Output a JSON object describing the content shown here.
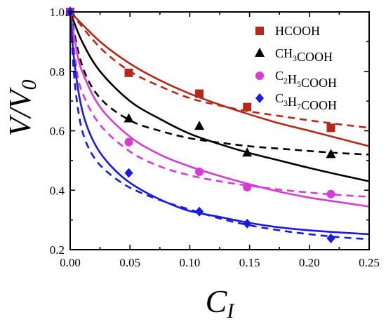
{
  "chart_data": {
    "type": "scatter",
    "xlabel": "C",
    "xlabel_sub": "I",
    "ylabel": "V/V",
    "ylabel_sub": "0",
    "xlim": [
      0.0,
      0.25
    ],
    "ylim": [
      0.2,
      1.0
    ],
    "xticks": [
      "0.00",
      "0.05",
      "0.10",
      "0.15",
      "0.20",
      "0.25"
    ],
    "yticks": [
      "0.2",
      "0.4",
      "0.6",
      "0.8",
      "1.0"
    ],
    "grid": false,
    "legend_position": "top-right",
    "series": [
      {
        "name": "HCOOH",
        "legend": {
          "base": "HCOOH",
          "parts": [
            {
              "t": "HCOOH",
              "sub": false
            }
          ]
        },
        "color": "#b5291b",
        "marker": "square",
        "points": {
          "x": [
            0.0,
            0.049,
            0.108,
            0.148,
            0.218
          ],
          "y": [
            1.0,
            0.795,
            0.725,
            0.68,
            0.61
          ]
        },
        "solid_fit": {
          "x": [
            0.0,
            0.025,
            0.05,
            0.075,
            0.1,
            0.125,
            0.15,
            0.175,
            0.2,
            0.225,
            0.25
          ],
          "y": [
            1.0,
            0.9,
            0.826,
            0.77,
            0.725,
            0.688,
            0.655,
            0.625,
            0.6,
            0.574,
            0.548
          ]
        },
        "dashed_fit": {
          "x": [
            0.0,
            0.025,
            0.05,
            0.075,
            0.1,
            0.125,
            0.15,
            0.175,
            0.2,
            0.225,
            0.25
          ],
          "y": [
            1.0,
            0.88,
            0.8,
            0.75,
            0.71,
            0.685,
            0.665,
            0.65,
            0.635,
            0.622,
            0.61
          ]
        }
      },
      {
        "name": "CH3COOH",
        "legend": {
          "base": "CH3COOH",
          "parts": [
            {
              "t": "CH",
              "sub": false
            },
            {
              "t": "3",
              "sub": true
            },
            {
              "t": "COOH",
              "sub": false
            }
          ]
        },
        "color": "#000000",
        "marker": "triangle",
        "points": {
          "x": [
            0.0,
            0.049,
            0.108,
            0.148,
            0.218
          ],
          "y": [
            1.0,
            0.64,
            0.615,
            0.525,
            0.52
          ]
        },
        "solid_fit": {
          "x": [
            0.0,
            0.01,
            0.025,
            0.05,
            0.075,
            0.1,
            0.125,
            0.15,
            0.175,
            0.2,
            0.225,
            0.25
          ],
          "y": [
            1.0,
            0.9,
            0.8,
            0.7,
            0.64,
            0.59,
            0.555,
            0.525,
            0.5,
            0.475,
            0.452,
            0.43
          ]
        },
        "dashed_fit": {
          "x": [
            0.0,
            0.01,
            0.025,
            0.05,
            0.075,
            0.1,
            0.125,
            0.15,
            0.175,
            0.2,
            0.225,
            0.25
          ],
          "y": [
            1.0,
            0.82,
            0.71,
            0.635,
            0.6,
            0.575,
            0.56,
            0.548,
            0.54,
            0.532,
            0.525,
            0.52
          ]
        }
      },
      {
        "name": "C2H5COOH",
        "legend": {
          "base": "C2H5COOH",
          "parts": [
            {
              "t": "C",
              "sub": false
            },
            {
              "t": "2",
              "sub": true
            },
            {
              "t": "H",
              "sub": false
            },
            {
              "t": "5",
              "sub": true
            },
            {
              "t": "COOH",
              "sub": false
            }
          ]
        },
        "color": "#d63bd6",
        "marker": "circle",
        "points": {
          "x": [
            0.0,
            0.049,
            0.108,
            0.148,
            0.218
          ],
          "y": [
            1.0,
            0.562,
            0.462,
            0.41,
            0.387
          ]
        },
        "solid_fit": {
          "x": [
            0.0,
            0.005,
            0.01,
            0.025,
            0.05,
            0.075,
            0.1,
            0.125,
            0.15,
            0.175,
            0.2,
            0.225,
            0.25
          ],
          "y": [
            1.0,
            0.88,
            0.8,
            0.68,
            0.58,
            0.52,
            0.48,
            0.448,
            0.42,
            0.395,
            0.375,
            0.36,
            0.345
          ]
        },
        "dashed_fit": {
          "x": [
            0.0,
            0.005,
            0.01,
            0.025,
            0.05,
            0.075,
            0.1,
            0.125,
            0.15,
            0.175,
            0.2,
            0.225,
            0.25
          ],
          "y": [
            1.0,
            0.82,
            0.73,
            0.62,
            0.53,
            0.48,
            0.45,
            0.43,
            0.415,
            0.402,
            0.392,
            0.384,
            0.378
          ]
        }
      },
      {
        "name": "C3H7COOH",
        "legend": {
          "base": "C3H7COOH",
          "parts": [
            {
              "t": "C",
              "sub": false
            },
            {
              "t": "3",
              "sub": true
            },
            {
              "t": "H",
              "sub": false
            },
            {
              "t": "7",
              "sub": true
            },
            {
              "t": "COOH",
              "sub": false
            }
          ]
        },
        "color": "#1a1ae0",
        "marker": "diamond",
        "points": {
          "x": [
            0.0,
            0.049,
            0.108,
            0.148,
            0.218
          ],
          "y": [
            1.0,
            0.458,
            0.328,
            0.288,
            0.238
          ]
        },
        "solid_fit": {
          "x": [
            0.0,
            0.003,
            0.007,
            0.012,
            0.02,
            0.03,
            0.045,
            0.06,
            0.08,
            0.1,
            0.125,
            0.15,
            0.175,
            0.2,
            0.225,
            0.25
          ],
          "y": [
            1.0,
            0.85,
            0.73,
            0.64,
            0.56,
            0.5,
            0.44,
            0.4,
            0.36,
            0.33,
            0.31,
            0.29,
            0.275,
            0.265,
            0.258,
            0.252
          ]
        },
        "dashed_fit": {
          "x": [
            0.0,
            0.003,
            0.007,
            0.012,
            0.02,
            0.03,
            0.045,
            0.06,
            0.08,
            0.1,
            0.125,
            0.15,
            0.175,
            0.2,
            0.225,
            0.25
          ],
          "y": [
            1.0,
            0.8,
            0.66,
            0.575,
            0.51,
            0.465,
            0.42,
            0.39,
            0.36,
            0.335,
            0.305,
            0.282,
            0.265,
            0.252,
            0.242,
            0.235
          ]
        }
      }
    ]
  }
}
